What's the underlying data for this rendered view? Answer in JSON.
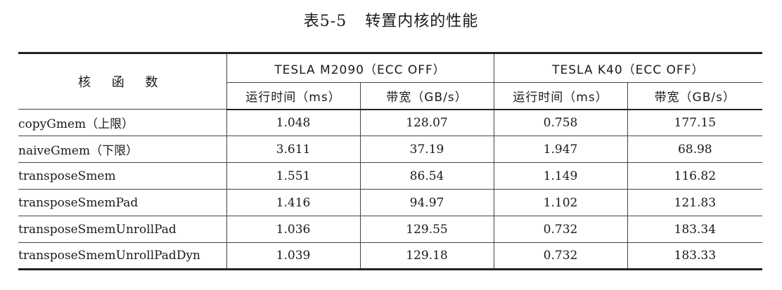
{
  "caption": {
    "number": "表5-5",
    "title": "转置内核的性能"
  },
  "table": {
    "kernel_header": "核 函 数",
    "groups": [
      {
        "label": "TESLA M2090（ECC OFF）"
      },
      {
        "label": "TESLA K40（ECC OFF）"
      }
    ],
    "subheaders": [
      "运行时间（ms）",
      "带宽（GB/s）",
      "运行时间（ms）",
      "带宽（GB/s）"
    ],
    "rows": [
      {
        "name": "copyGmem（上限）",
        "m2090_time": "1.048",
        "m2090_bw": "128.07",
        "k40_time": "0.758",
        "k40_bw": "177.15"
      },
      {
        "name": "naiveGmem（下限）",
        "m2090_time": "3.611",
        "m2090_bw": "37.19",
        "k40_time": "1.947",
        "k40_bw": "68.98"
      },
      {
        "name": "transposeSmem",
        "m2090_time": "1.551",
        "m2090_bw": "86.54",
        "k40_time": "1.149",
        "k40_bw": "116.82"
      },
      {
        "name": "transposeSmemPad",
        "m2090_time": "1.416",
        "m2090_bw": "94.97",
        "k40_time": "1.102",
        "k40_bw": "121.83"
      },
      {
        "name": "transposeSmemUnrollPad",
        "m2090_time": "1.036",
        "m2090_bw": "129.55",
        "k40_time": "0.732",
        "k40_bw": "183.34"
      },
      {
        "name": "transposeSmemUnrollPadDyn",
        "m2090_time": "1.039",
        "m2090_bw": "129.18",
        "k40_time": "0.732",
        "k40_bw": "183.33"
      }
    ]
  }
}
